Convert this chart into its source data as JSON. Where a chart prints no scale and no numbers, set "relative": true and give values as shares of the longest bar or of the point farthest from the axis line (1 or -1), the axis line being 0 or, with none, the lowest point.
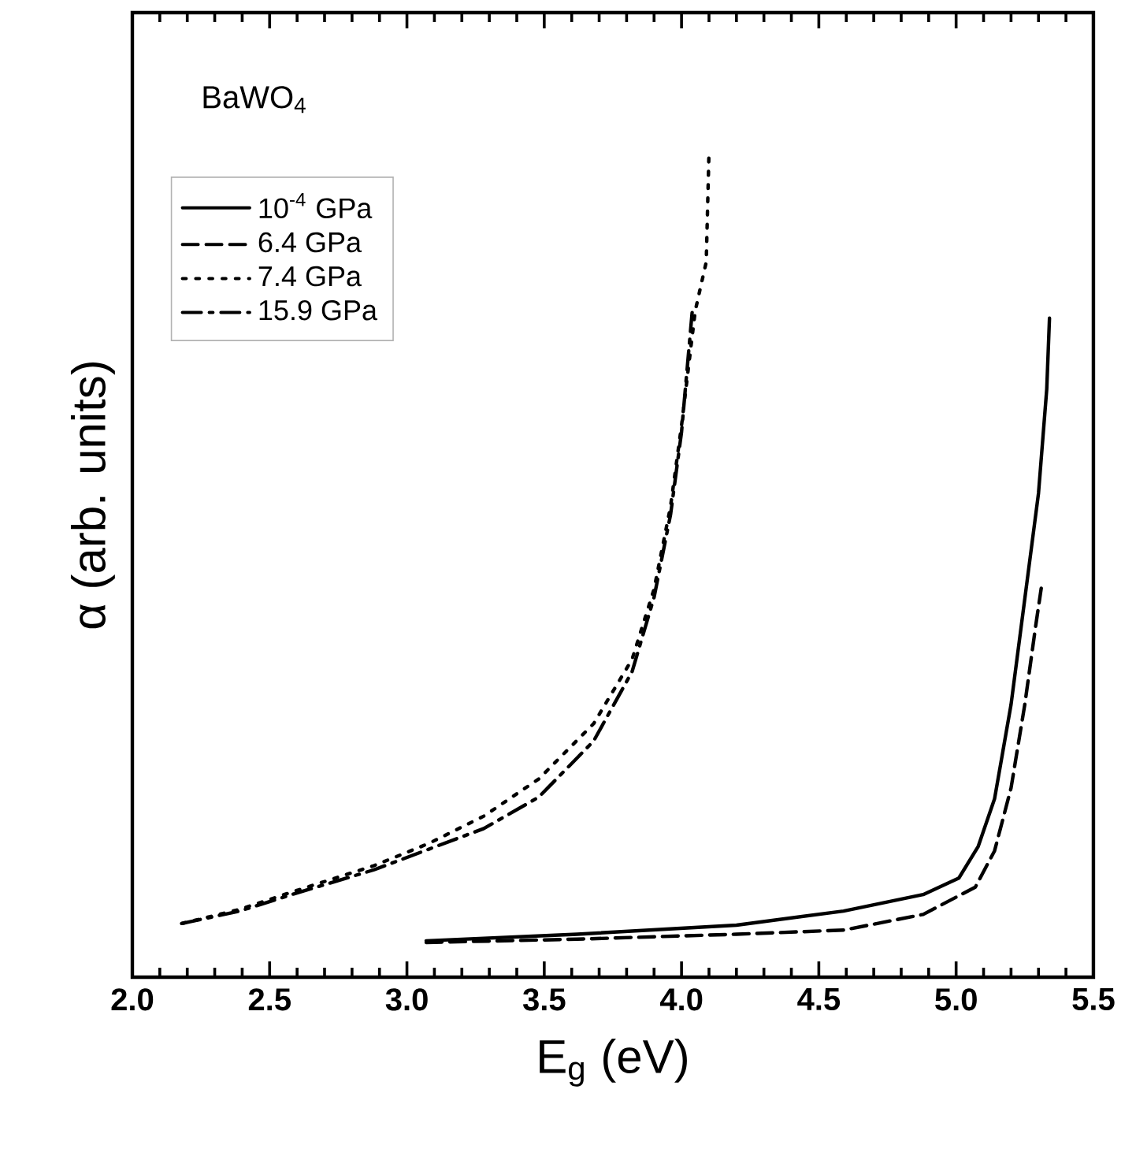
{
  "chart_data": {
    "type": "line",
    "relative": true,
    "xlabel": "E$_{g}$ (eV)",
    "ylabel": "α (arb. units)",
    "annotations": [
      "BaWO$_{4}$"
    ],
    "xlim": [
      2.0,
      5.5
    ],
    "xticks": [
      {
        "value": 2.0,
        "label": "2.0"
      },
      2.5,
      {
        "value": 3.0,
        "label": "3.0"
      },
      3.5,
      {
        "value": 4.0,
        "label": "4.0"
      },
      4.5,
      {
        "value": 5.0,
        "label": "5.0"
      },
      5.5
    ],
    "legend": "top left",
    "series": [
      {
        "name": "10$^{-4}$ GPa",
        "color": "#000000",
        "line_style": "solid",
        "x": [
          3.07,
          3.62,
          4.2,
          4.59,
          4.88,
          5.01,
          5.08,
          5.14,
          5.2,
          5.25,
          5.3,
          5.33,
          5.34
        ],
        "values": [
          0.044,
          0.052,
          0.063,
          0.08,
          0.1,
          0.12,
          0.158,
          0.216,
          0.33,
          0.458,
          0.586,
          0.712,
          0.798
        ]
      },
      {
        "name": "6.4 GPa",
        "color": "#000000",
        "line_style": "dashed",
        "x": [
          3.07,
          3.62,
          4.2,
          4.59,
          4.88,
          5.07,
          5.14,
          5.2,
          5.25,
          5.29,
          5.31
        ],
        "values": [
          0.042,
          0.046,
          0.052,
          0.057,
          0.076,
          0.109,
          0.153,
          0.229,
          0.33,
          0.426,
          0.471
        ]
      },
      {
        "name": "7.4 GPa",
        "color": "#000000",
        "line_style": "dotted",
        "x": [
          2.18,
          2.39,
          2.58,
          2.88,
          3.08,
          3.28,
          3.48,
          3.68,
          3.82,
          3.9,
          3.96,
          4.0,
          4.05,
          4.09,
          4.1
        ],
        "values": [
          0.065,
          0.082,
          0.103,
          0.135,
          0.162,
          0.195,
          0.24,
          0.307,
          0.385,
          0.47,
          0.57,
          0.668,
          0.807,
          0.866,
          1
        ]
      },
      {
        "name": "15.9 GPa",
        "color": "#000000",
        "line_style": "dashdot",
        "x": [
          2.18,
          2.39,
          2.58,
          2.88,
          3.08,
          3.28,
          3.48,
          3.68,
          3.82,
          3.9,
          3.96,
          4.0,
          4.04
        ],
        "values": [
          0.065,
          0.08,
          0.1,
          0.13,
          0.155,
          0.18,
          0.218,
          0.286,
          0.37,
          0.46,
          0.56,
          0.66,
          0.81
        ]
      }
    ]
  }
}
